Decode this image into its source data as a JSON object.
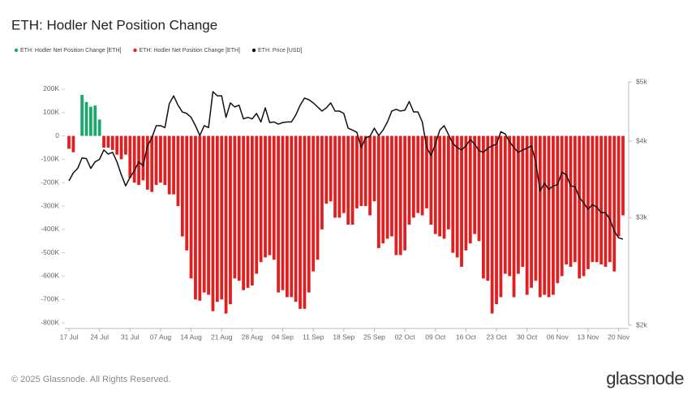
{
  "chart_data": {
    "type": "bar",
    "title": "ETH: Hodler Net Position Change",
    "categories": [
      "17 Jul",
      null,
      null,
      null,
      null,
      null,
      null,
      "24 Jul",
      null,
      null,
      null,
      null,
      null,
      null,
      "31 Jul",
      null,
      null,
      null,
      null,
      null,
      null,
      "07 Aug",
      null,
      null,
      null,
      null,
      null,
      null,
      "14 Aug",
      null,
      null,
      null,
      null,
      null,
      null,
      "21 Aug",
      null,
      null,
      null,
      null,
      null,
      null,
      "28 Aug",
      null,
      null,
      null,
      null,
      null,
      null,
      "04 Sep",
      null,
      null,
      null,
      null,
      null,
      null,
      "11 Sep",
      null,
      null,
      null,
      null,
      null,
      null,
      "18 Sep",
      null,
      null,
      null,
      null,
      null,
      null,
      "25 Sep",
      null,
      null,
      null,
      null,
      null,
      null,
      "02 Oct",
      null,
      null,
      null,
      null,
      null,
      null,
      "09 Oct",
      null,
      null,
      null,
      null,
      null,
      null,
      "16 Oct",
      null,
      null,
      null,
      null,
      null,
      null,
      "23 Oct",
      null,
      null,
      null,
      null,
      null,
      null,
      "30 Oct",
      null,
      null,
      null,
      null,
      null,
      null,
      "06 Nov",
      null,
      null,
      null,
      null,
      null,
      null,
      "13 Nov",
      null,
      null,
      null,
      null,
      null,
      null,
      "20 Nov",
      null
    ],
    "series": [
      {
        "name": "ETH: Hodler Net Position Change [ETH]",
        "type": "bar",
        "color": "#1aa86b",
        "values": [
          null,
          null,
          null,
          175000,
          145000,
          125000,
          130000,
          70000,
          null,
          null,
          null,
          null,
          null,
          null,
          null,
          null,
          null,
          null,
          null,
          null,
          null,
          null,
          null,
          null,
          null,
          null,
          null,
          null,
          null,
          null,
          null,
          null,
          null,
          null,
          null,
          null,
          null,
          null,
          null,
          null,
          null,
          null,
          null,
          null,
          null,
          null,
          null,
          null,
          null,
          null,
          null,
          null,
          null,
          null,
          null,
          null,
          null,
          null,
          null,
          null,
          null,
          null,
          null,
          null,
          null,
          null,
          null,
          null,
          null,
          null,
          null,
          null,
          null,
          null,
          null,
          null,
          null,
          null,
          null,
          null,
          null,
          null,
          null,
          null,
          null,
          null,
          null,
          null,
          null,
          null,
          null,
          null,
          null,
          null,
          null,
          null,
          null,
          null,
          null,
          null,
          null,
          null,
          null,
          null,
          null,
          null,
          null,
          null,
          null,
          null,
          null,
          null,
          null,
          null,
          null,
          null,
          null,
          null,
          null,
          null,
          null,
          null,
          null,
          null,
          null,
          null,
          null,
          null
        ]
      },
      {
        "name": "ETH: Hodler Net Position Change [ETH]",
        "type": "bar",
        "color": "#e02020",
        "values": [
          -55000,
          -70000,
          null,
          null,
          null,
          null,
          null,
          null,
          -50000,
          -50000,
          -60000,
          -80000,
          -100000,
          -80000,
          -180000,
          -200000,
          -210000,
          -190000,
          -230000,
          -240000,
          -210000,
          -200000,
          -210000,
          -250000,
          -250000,
          -300000,
          -430000,
          -490000,
          -610000,
          -700000,
          -705000,
          -670000,
          -680000,
          -750000,
          -710000,
          -700000,
          -760000,
          -720000,
          -610000,
          -620000,
          -660000,
          -650000,
          -640000,
          -590000,
          -540000,
          -520000,
          -510000,
          -530000,
          -670000,
          -660000,
          -690000,
          -690000,
          -710000,
          -740000,
          -740000,
          -670000,
          -580000,
          -530000,
          -400000,
          -290000,
          -280000,
          -350000,
          -350000,
          -330000,
          -380000,
          -380000,
          -310000,
          -300000,
          -300000,
          -340000,
          -280000,
          -480000,
          -460000,
          -440000,
          -430000,
          -510000,
          -510000,
          -490000,
          -380000,
          -350000,
          -330000,
          -340000,
          -310000,
          -380000,
          -420000,
          -430000,
          -440000,
          -400000,
          -500000,
          -520000,
          -560000,
          -490000,
          -460000,
          -420000,
          -450000,
          -610000,
          -620000,
          -760000,
          -720000,
          -690000,
          -590000,
          -600000,
          -690000,
          -590000,
          -560000,
          -680000,
          -650000,
          -620000,
          -690000,
          -680000,
          -690000,
          -680000,
          -630000,
          -600000,
          -550000,
          -560000,
          -540000,
          -610000,
          -600000,
          -570000,
          -540000,
          -540000,
          -550000,
          -560000,
          -540000,
          -580000,
          -430000,
          -340000
        ]
      },
      {
        "name": "ETH: Price [USD]",
        "type": "line",
        "axis": "y2",
        "color": "#111111",
        "values": [
          3445,
          3550,
          3610,
          3755,
          3745,
          3610,
          3700,
          3735,
          3870,
          3810,
          3835,
          3700,
          3525,
          3380,
          3490,
          3580,
          3700,
          3645,
          3930,
          4050,
          4240,
          4240,
          4210,
          4605,
          4745,
          4580,
          4465,
          4440,
          4375,
          4240,
          4085,
          4240,
          4210,
          4820,
          4745,
          4745,
          4375,
          4620,
          4550,
          4580,
          4350,
          4375,
          4350,
          4440,
          4300,
          4535,
          4290,
          4300,
          4265,
          4290,
          4300,
          4300,
          4415,
          4580,
          4705,
          4675,
          4620,
          4550,
          4480,
          4535,
          4620,
          4480,
          4480,
          4440,
          4200,
          4170,
          4135,
          3905,
          4050,
          4075,
          4200,
          4085,
          4170,
          4300,
          4480,
          4510,
          4480,
          4495,
          4645,
          4465,
          4465,
          4300,
          3905,
          3790,
          3955,
          4170,
          4240,
          4100,
          3965,
          3905,
          3870,
          3930,
          4025,
          3955,
          3860,
          3835,
          3895,
          3930,
          3955,
          4145,
          4110,
          3990,
          3905,
          3835,
          3870,
          3895,
          3930,
          3700,
          3315,
          3415,
          3335,
          3380,
          3395,
          3560,
          3525,
          3380,
          3370,
          3235,
          3170,
          3095,
          3150,
          3120,
          3055,
          3055,
          2980,
          2850,
          2780,
          2765
        ]
      }
    ],
    "ylim": [
      -810000,
      231000
    ],
    "yticks": [
      {
        "value": 200000,
        "label": "200K"
      },
      {
        "value": 100000,
        "label": "100K"
      },
      0,
      {
        "value": -100000,
        "label": "-100K"
      },
      {
        "value": -200000,
        "label": "-200K"
      },
      {
        "value": -300000,
        "label": "-300K"
      },
      {
        "value": -400000,
        "label": "-400K"
      },
      {
        "value": -500000,
        "label": "-500K"
      },
      {
        "value": -600000,
        "label": "-600K"
      },
      {
        "value": -700000,
        "label": "-700K"
      },
      {
        "value": -800000,
        "label": "-800K"
      }
    ],
    "y2lim": [
      2000,
      5000
    ],
    "y2scale": "log",
    "y2ticks": [
      {
        "value": 5000,
        "label": "$5k"
      },
      {
        "value": 4000,
        "label": "$4k"
      },
      {
        "value": 3000,
        "label": "$3k"
      },
      {
        "value": 2000,
        "label": "$2k"
      }
    ]
  },
  "footer": {
    "copyright": "© 2025 Glassnode. All Rights Reserved.",
    "brand": "glassnode"
  }
}
